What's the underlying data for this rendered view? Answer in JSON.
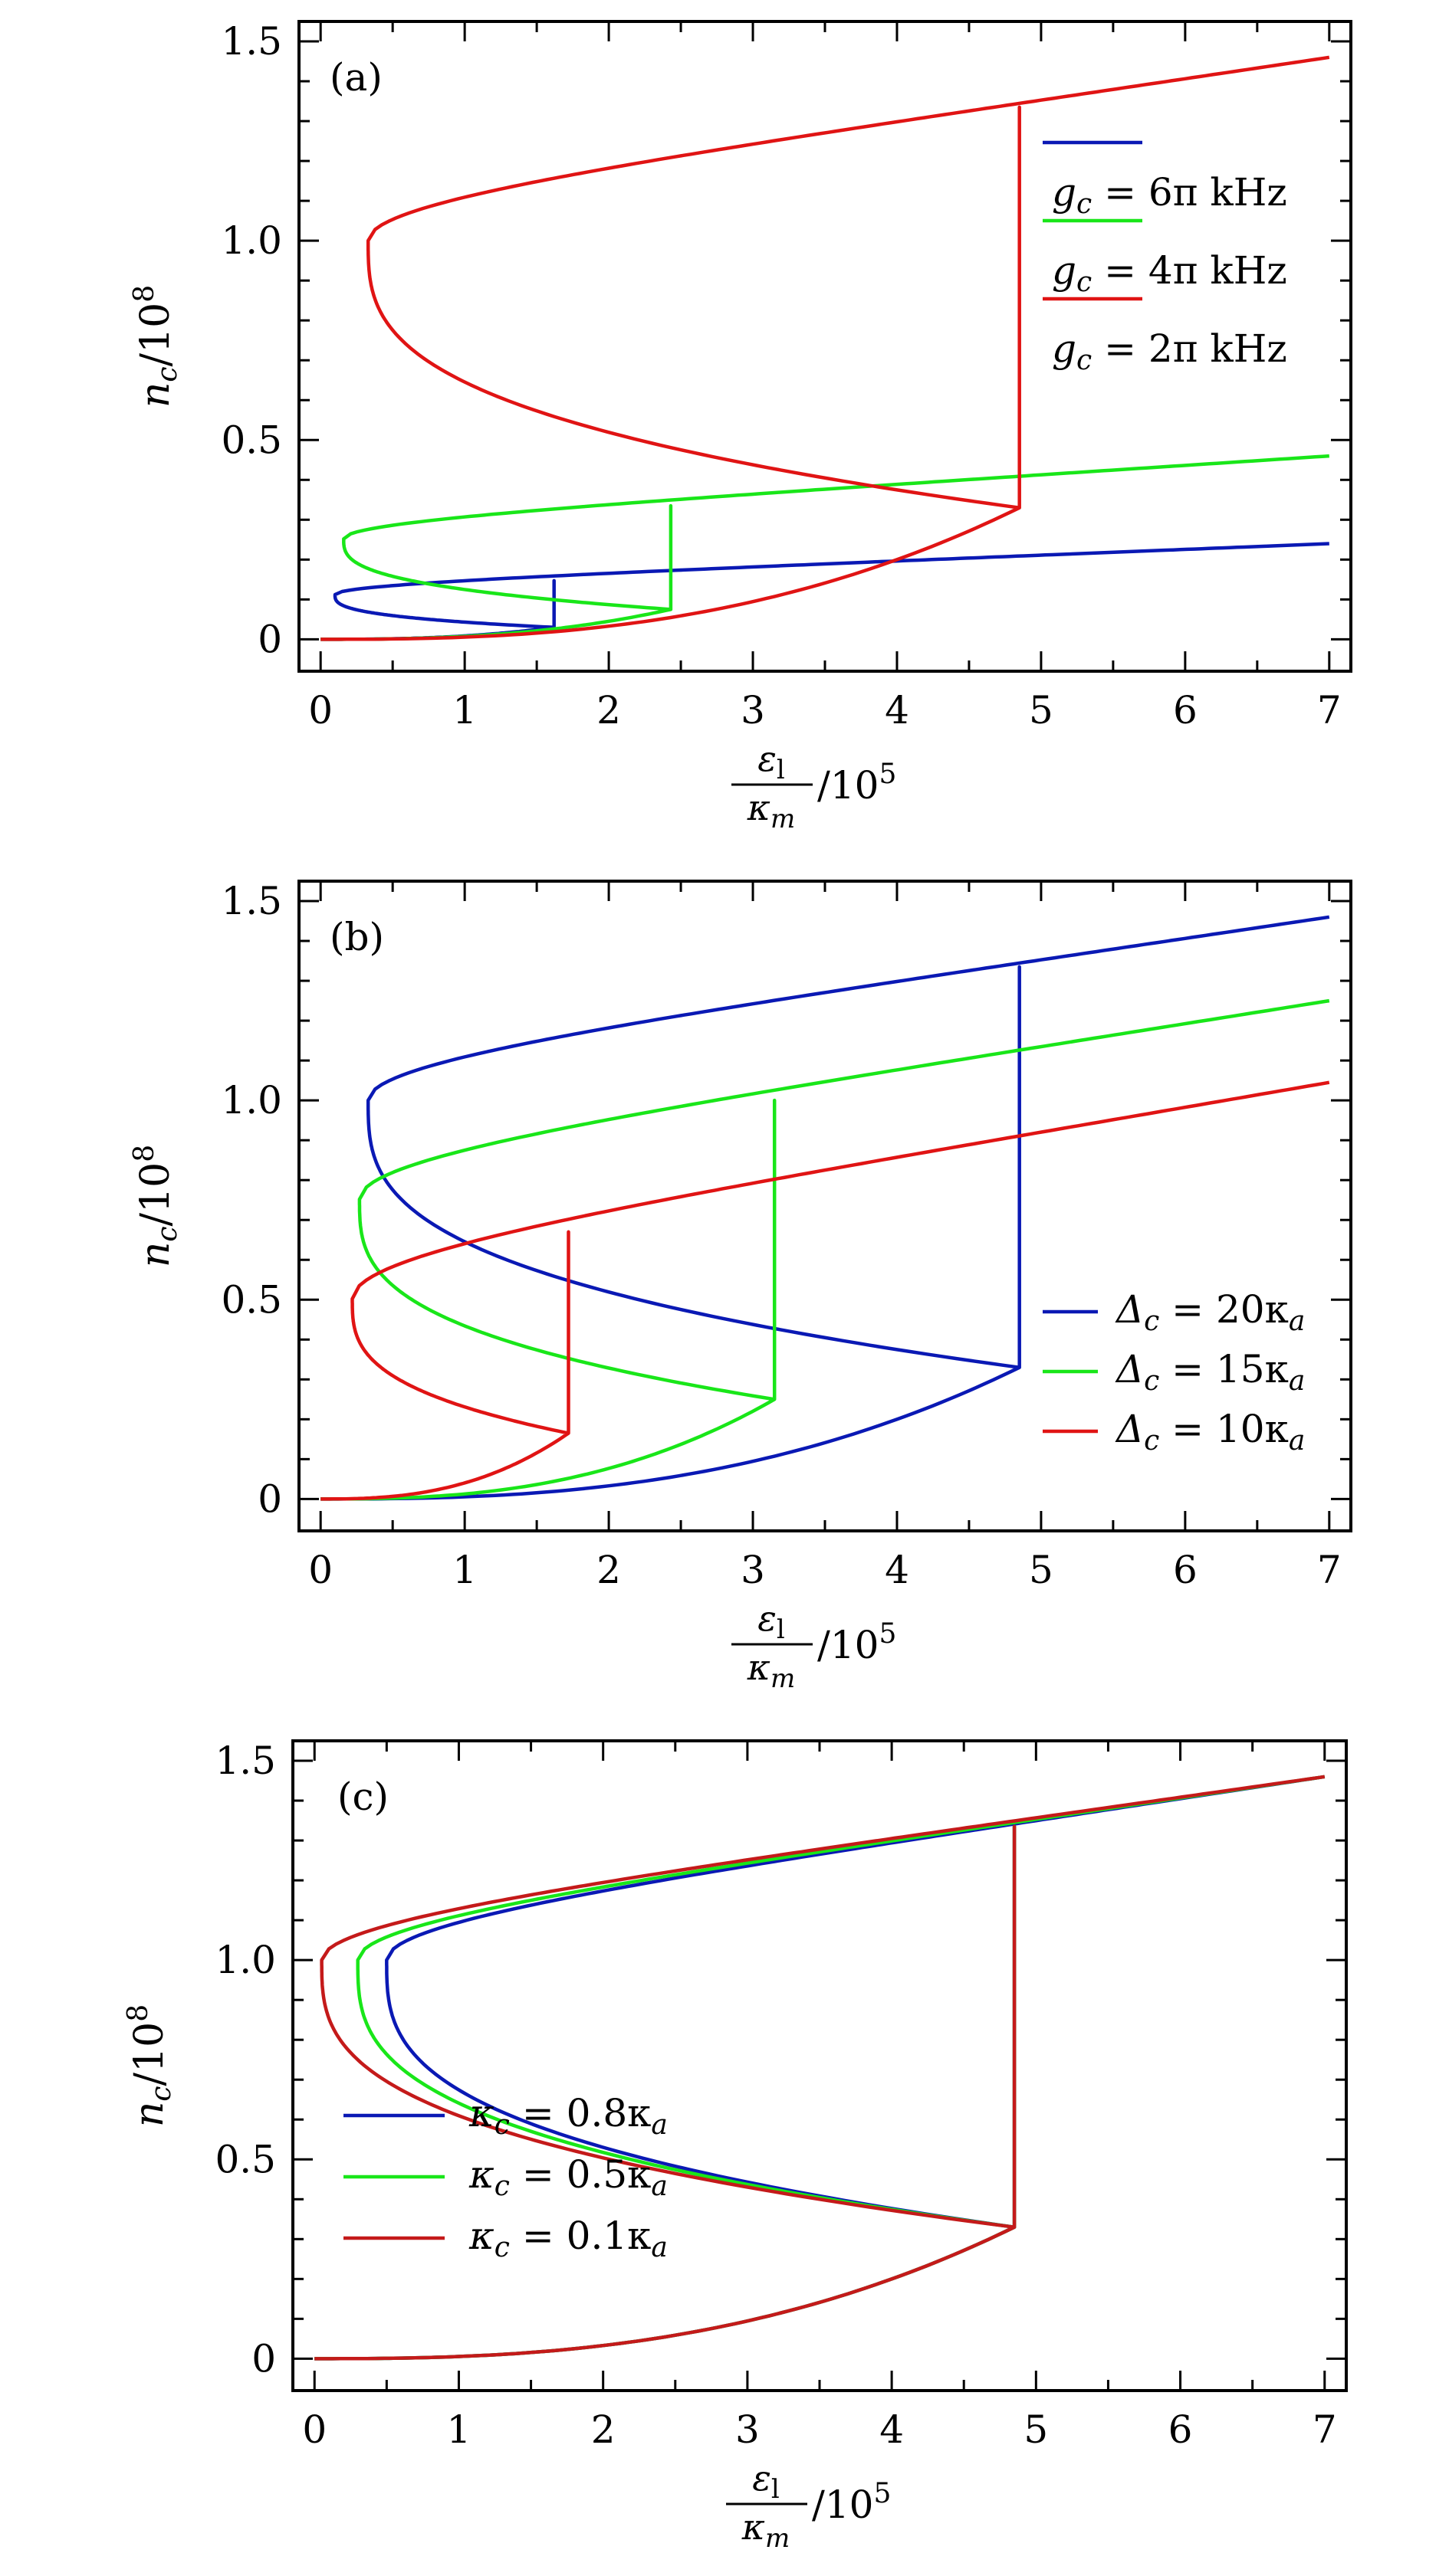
{
  "chart_data": [
    {
      "panel": "a",
      "type": "line",
      "panel_label": "(a)",
      "xlabel": {
        "num": "ε",
        "num_sub": "l",
        "den": "κ",
        "den_sub": "m",
        "tail": "/10",
        "tail_sup": "5"
      },
      "ylabel": {
        "base": "n",
        "sub": "c",
        "tail": "/10",
        "sup": "8"
      },
      "xlim": [
        -0.15,
        7.15
      ],
      "ylim": [
        -0.08,
        1.55
      ],
      "x_ticks": [
        "0",
        "1",
        "2",
        "3",
        "4",
        "5",
        "6",
        "7"
      ],
      "y_ticks": [
        "0",
        "0.5",
        "1.0",
        "1.5"
      ],
      "legend_position": "top-right",
      "series": [
        {
          "label": {
            "sym": "g",
            "sub": "c",
            "rhs": " = 6π kHz"
          },
          "color": "#0a19b4",
          "turn_x": 0.1,
          "turn_y": 0.112,
          "jump_x": 1.62,
          "jump_low": 0.03,
          "jump_high": 0.147,
          "end_x": 7.0,
          "end_y": 0.24
        },
        {
          "label": {
            "sym": "g",
            "sub": "c",
            "rhs": " = 4π kHz"
          },
          "color": "#19e619",
          "turn_x": 0.16,
          "turn_y": 0.252,
          "jump_x": 2.43,
          "jump_low": 0.075,
          "jump_high": 0.335,
          "end_x": 7.0,
          "end_y": 0.46
        },
        {
          "label": {
            "sym": "g",
            "sub": "c",
            "rhs": " = 2π kHz"
          },
          "color": "#e01414",
          "turn_x": 0.33,
          "turn_y": 1.0,
          "jump_x": 4.85,
          "jump_low": 0.33,
          "jump_high": 1.335,
          "end_x": 7.0,
          "end_y": 1.46
        }
      ]
    },
    {
      "panel": "b",
      "type": "line",
      "panel_label": "(b)",
      "xlabel": {
        "num": "ε",
        "num_sub": "l",
        "den": "κ",
        "den_sub": "m",
        "tail": "/10",
        "tail_sup": "5"
      },
      "ylabel": {
        "base": "n",
        "sub": "c",
        "tail": "/10",
        "sup": "8"
      },
      "xlim": [
        -0.15,
        7.15
      ],
      "ylim": [
        -0.08,
        1.55
      ],
      "x_ticks": [
        "0",
        "1",
        "2",
        "3",
        "4",
        "5",
        "6",
        "7"
      ],
      "y_ticks": [
        "0",
        "0.5",
        "1.0",
        "1.5"
      ],
      "legend_position": "center-right",
      "series": [
        {
          "label": {
            "sym": "Δ",
            "sub": "c",
            "rhs": " = 20κ",
            "rhs_sub": "a"
          },
          "color": "#0a19b4",
          "turn_x": 0.33,
          "turn_y": 1.0,
          "jump_x": 4.85,
          "jump_low": 0.33,
          "jump_high": 1.335,
          "end_x": 7.0,
          "end_y": 1.46
        },
        {
          "label": {
            "sym": "Δ",
            "sub": "c",
            "rhs": " = 15κ",
            "rhs_sub": "a"
          },
          "color": "#19e619",
          "turn_x": 0.27,
          "turn_y": 0.752,
          "jump_x": 3.15,
          "jump_low": 0.25,
          "jump_high": 1.0,
          "end_x": 7.0,
          "end_y": 1.25
        },
        {
          "label": {
            "sym": "Δ",
            "sub": "c",
            "rhs": " = 10κ",
            "rhs_sub": "a"
          },
          "color": "#e01414",
          "turn_x": 0.22,
          "turn_y": 0.502,
          "jump_x": 1.72,
          "jump_low": 0.165,
          "jump_high": 0.67,
          "end_x": 7.0,
          "end_y": 1.045
        }
      ]
    },
    {
      "panel": "c",
      "type": "line",
      "panel_label": "(c)",
      "xlabel": {
        "num": "ε",
        "num_sub": "l",
        "den": "κ",
        "den_sub": "m",
        "tail": "/10",
        "tail_sup": "5"
      },
      "ylabel": {
        "base": "n",
        "sub": "c",
        "tail": "/10",
        "sup": "8"
      },
      "xlim": [
        -0.15,
        7.15
      ],
      "ylim": [
        -0.08,
        1.55
      ],
      "x_ticks": [
        "0",
        "1",
        "2",
        "3",
        "4",
        "5",
        "6",
        "7"
      ],
      "y_ticks": [
        "0",
        "0.5",
        "1.0",
        "1.5"
      ],
      "legend_position": "center-left",
      "series": [
        {
          "label": {
            "sym": "κ",
            "sub": "c",
            "rhs": " = 0.8κ",
            "rhs_sub": "a"
          },
          "color": "#0a19b4",
          "turn_x": 0.5,
          "turn_y": 1.0,
          "jump_x": 4.85,
          "jump_low": 0.33,
          "jump_high": 1.335,
          "end_x": 7.0,
          "end_y": 1.46
        },
        {
          "label": {
            "sym": "κ",
            "sub": "c",
            "rhs": " = 0.5κ",
            "rhs_sub": "a"
          },
          "color": "#19e619",
          "turn_x": 0.3,
          "turn_y": 1.0,
          "jump_x": 4.85,
          "jump_low": 0.33,
          "jump_high": 1.335,
          "end_x": 7.0,
          "end_y": 1.46
        },
        {
          "label": {
            "sym": "κ",
            "sub": "c",
            "rhs": " = 0.1κ",
            "rhs_sub": "a"
          },
          "color": "#c41a1a",
          "turn_x": 0.05,
          "turn_y": 1.0,
          "jump_x": 4.85,
          "jump_low": 0.33,
          "jump_high": 1.335,
          "end_x": 7.0,
          "end_y": 1.46
        }
      ]
    }
  ]
}
